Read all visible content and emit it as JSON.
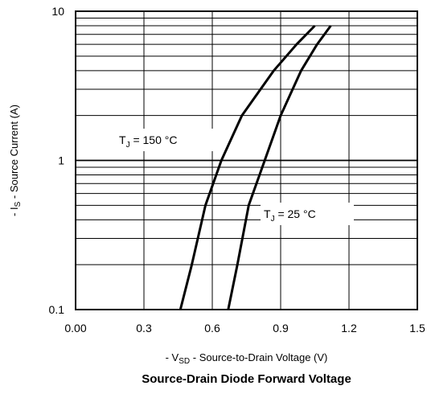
{
  "chart_data": {
    "type": "line",
    "title": "Source-Drain Diode Forward Voltage",
    "xlabel": {
      "prefix": "- V",
      "subscript": "SD",
      "text": " - Source-to-Drain Voltage (V)"
    },
    "ylabel": {
      "prefix": "- I",
      "subscript": "S",
      "text": " - Source Current (A)"
    },
    "xlim": [
      0.0,
      1.5
    ],
    "ylim": [
      0.1,
      10
    ],
    "yscale": "log",
    "x_ticks": [
      "0.00",
      "0.3",
      "0.6",
      "0.9",
      "1.2",
      "1.5"
    ],
    "y_ticks": [
      "0.1",
      "1",
      "10"
    ],
    "grid": true,
    "series": [
      {
        "annotation": {
          "prefix": "T",
          "subscript": "J",
          "text": " = 150 °C"
        },
        "x": [
          0.46,
          0.51,
          0.57,
          0.64,
          0.73,
          0.87,
          0.97,
          1.05
        ],
        "y": [
          0.1,
          0.2,
          0.5,
          1.0,
          2.0,
          4.0,
          6.0,
          8.0
        ]
      },
      {
        "annotation": {
          "prefix": "T",
          "subscript": "J",
          "text": " = 25 °C"
        },
        "x": [
          0.67,
          0.71,
          0.76,
          0.83,
          0.9,
          0.99,
          1.06,
          1.12
        ],
        "y": [
          0.1,
          0.2,
          0.5,
          1.0,
          2.0,
          4.0,
          6.0,
          8.0
        ]
      }
    ]
  }
}
